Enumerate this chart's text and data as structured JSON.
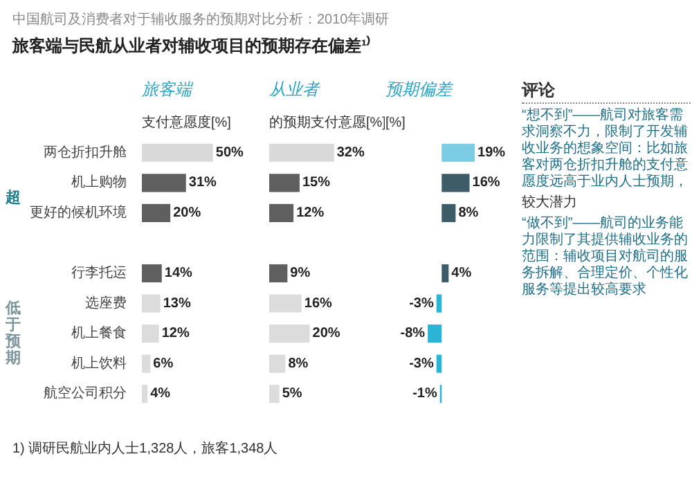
{
  "chart_data": [
    {
      "type": "other",
      "title": "中国航司及消费者对于辅收服务的预期对比分析：2010年调研",
      "subtitle": "旅客端与民航从业者对辅收项目的预期存在偏差¹⁾",
      "annotations": [
        "1) 调研民航业内人士1,328人，旅客1,348人"
      ]
    },
    {
      "type": "bar",
      "orientation": "horizontal",
      "title": "旅客端",
      "subtitle": "支付意愿度[%]",
      "categories": [
        "两仓折扣升舱",
        "机上购物",
        "更好的候机环境",
        null,
        "行李托运",
        "选座费",
        "机上餐食",
        "机上饮料",
        "航空公司积分"
      ],
      "values": [
        50,
        31,
        20,
        null,
        14,
        13,
        12,
        6,
        4
      ],
      "value_labels": [
        "50%",
        "31%",
        "20%",
        null,
        "14%",
        "13%",
        "12%",
        "6%",
        "4%"
      ],
      "colors": [
        "#d9d9d9",
        "#5f5f5f",
        "#5f5f5f",
        "#5f5f5f",
        "#5f5f5f",
        "#dcdcdc",
        "#dcdcdc",
        "#dcdcdc",
        "#dcdcdc"
      ],
      "tick_labels": "y",
      "annotations": [
        "超",
        "低于预期"
      ]
    },
    {
      "type": "bar",
      "orientation": "horizontal",
      "title": "从业者",
      "subtitle": "的预期支付意愿[%]",
      "values": [
        32,
        15,
        12,
        null,
        9,
        16,
        20,
        8,
        5
      ],
      "value_labels": [
        "32%",
        "15%",
        "12%",
        null,
        "9%",
        "16%",
        "20%",
        "8%",
        "5%"
      ],
      "colors": [
        "#d9d9d9",
        "#5f5f5f",
        "#5f5f5f",
        "#5f5f5f",
        "#5f5f5f",
        "#dcdcdc",
        "#dcdcdc",
        "#dcdcdc",
        "#dcdcdc"
      ]
    },
    {
      "type": "bar",
      "orientation": "horizontal",
      "title": "预期偏差",
      "subtitle": "[%]",
      "values": [
        19,
        16,
        8,
        null,
        4,
        -3,
        -8,
        -3,
        -1
      ],
      "value_labels": [
        "19%",
        "16%",
        "8%",
        null,
        "4%",
        "-3%",
        "-8%",
        "-3%",
        "-1%"
      ],
      "colors": [
        "#7ccde3",
        "#3e5c68",
        "#3e5c68",
        "#3e5c68",
        "#3e5c68",
        "#2ab5d6",
        "#2ab5d6",
        "#2ab5d6",
        "#2ab5d6"
      ]
    },
    {
      "type": "other",
      "title": "评论",
      "annotations": [
        "“想不到”——航司对旅客需求洞察不力，限制了开发辅收业务的想象空间：比如旅客对两仓折扣升舱的支付意愿度远高于业内人士预期，",
        "较大潜力",
        "“做不到”——航司的业务能力限制了其提供辅收业务的范围：辅收项目对航司的服务拆解、合理定价、个性化服务等提出较高要求"
      ]
    }
  ]
}
